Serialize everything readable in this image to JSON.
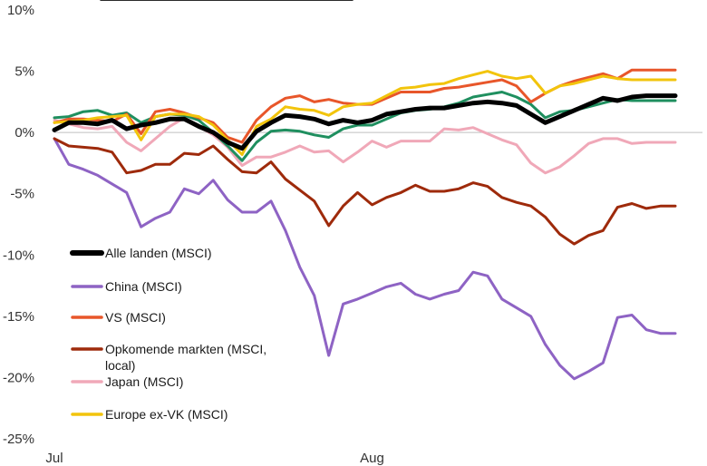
{
  "chart_data": {
    "type": "line",
    "ylim": [
      -25,
      10
    ],
    "yticks": [
      10,
      5,
      0,
      -5,
      -10,
      -15,
      -20,
      -25
    ],
    "ytick_labels": [
      "10%",
      "5%",
      "0%",
      "-5%",
      "-10%",
      "-15%",
      "-20%",
      "-25%"
    ],
    "xticks": [
      0,
      22
    ],
    "xtick_labels": [
      "Jul",
      "Aug"
    ],
    "grid": false,
    "legend_position": "left-middle",
    "x": [
      0,
      1,
      2,
      3,
      4,
      5,
      6,
      7,
      8,
      9,
      10,
      11,
      12,
      13,
      14,
      15,
      16,
      17,
      18,
      19,
      20,
      21,
      22,
      23,
      24,
      25,
      26,
      27,
      28,
      29,
      30,
      31,
      32,
      33,
      34,
      35,
      36,
      37,
      38,
      39,
      40,
      41,
      42,
      43
    ],
    "series": [
      {
        "name": "Alle landen (MSCI)",
        "color": "#000000",
        "width": 5,
        "values": [
          0.2,
          0.8,
          0.8,
          0.7,
          1.0,
          0.3,
          0.6,
          0.8,
          1.1,
          1.1,
          0.5,
          0.0,
          -0.8,
          -1.3,
          0.1,
          0.8,
          1.4,
          1.3,
          1.1,
          0.7,
          1.0,
          0.8,
          1.0,
          1.5,
          1.7,
          1.9,
          2.0,
          2.0,
          2.2,
          2.4,
          2.5,
          2.4,
          2.2,
          1.5,
          0.8,
          1.3,
          1.8,
          2.3,
          2.8,
          2.6,
          2.9,
          3.0,
          3.0,
          3.0
        ]
      },
      {
        "name": "China (MSCI)",
        "color": "#8e63c4",
        "width": 3,
        "values": [
          -0.5,
          -2.6,
          -3.0,
          -3.5,
          -4.2,
          -4.9,
          -7.7,
          -7.0,
          -6.5,
          -4.6,
          -5.0,
          -3.9,
          -5.5,
          -6.5,
          -6.5,
          -5.6,
          -8.0,
          -11.0,
          -13.3,
          -18.2,
          -14.0,
          -13.6,
          -13.1,
          -12.6,
          -12.3,
          -13.2,
          -13.6,
          -13.2,
          -12.9,
          -11.4,
          -11.7,
          -13.6,
          -14.3,
          -15.0,
          -17.3,
          -19.0,
          -20.1,
          -19.5,
          -18.8,
          -15.1,
          -14.9,
          -16.1,
          -16.4,
          -16.4
        ]
      },
      {
        "name": "VS (MSCI)",
        "color": "#e8562a",
        "width": 3,
        "values": [
          0.8,
          1.1,
          1.1,
          1.0,
          0.9,
          1.5,
          -0.1,
          1.7,
          1.9,
          1.6,
          1.2,
          0.8,
          -0.4,
          -0.8,
          1.0,
          2.1,
          2.8,
          3.0,
          2.5,
          2.7,
          2.4,
          2.3,
          2.3,
          2.8,
          3.3,
          3.3,
          3.3,
          3.6,
          3.7,
          3.9,
          4.1,
          4.3,
          3.8,
          2.5,
          3.2,
          3.8,
          4.2,
          4.5,
          4.8,
          4.4,
          5.1,
          5.1,
          5.1,
          5.1
        ]
      },
      {
        "name": "Opkomende markten (MSCI, local)",
        "color": "#9e2a0b",
        "width": 3,
        "values": [
          -0.5,
          -1.1,
          -1.2,
          -1.3,
          -1.6,
          -3.3,
          -3.1,
          -2.6,
          -2.6,
          -1.7,
          -1.8,
          -1.1,
          -2.2,
          -3.2,
          -3.3,
          -2.4,
          -3.8,
          -4.7,
          -5.6,
          -7.6,
          -6.0,
          -4.9,
          -5.9,
          -5.3,
          -4.9,
          -4.3,
          -4.8,
          -4.8,
          -4.6,
          -4.1,
          -4.4,
          -5.3,
          -5.7,
          -6.0,
          -6.9,
          -8.3,
          -9.1,
          -8.4,
          -8.0,
          -6.1,
          -5.8,
          -6.2,
          -6.0,
          -6.0
        ]
      },
      {
        "name": "Japan (MSCI)",
        "color": "#f0a8b8",
        "width": 3,
        "values": [
          1.0,
          0.7,
          0.4,
          0.3,
          0.5,
          -0.8,
          -1.5,
          -0.5,
          0.5,
          1.2,
          0.5,
          -0.2,
          -1.2,
          -2.7,
          -2.0,
          -2.0,
          -1.6,
          -1.1,
          -1.6,
          -1.5,
          -2.4,
          -1.6,
          -0.7,
          -1.2,
          -0.7,
          -0.7,
          -0.7,
          0.3,
          0.2,
          0.4,
          -0.1,
          -0.6,
          -1.0,
          -2.5,
          -3.3,
          -2.8,
          -1.9,
          -0.9,
          -0.5,
          -0.5,
          -0.9,
          -0.8,
          -0.8,
          -0.8
        ]
      },
      {
        "name": "Europe ex-VK (MSCI)",
        "color": "#f2c40c",
        "width": 3,
        "values": [
          0.8,
          0.9,
          1.0,
          1.2,
          1.3,
          1.4,
          -0.6,
          1.3,
          1.5,
          1.5,
          1.3,
          0.6,
          -0.6,
          -1.8,
          0.5,
          1.1,
          2.1,
          1.9,
          1.8,
          1.4,
          2.1,
          2.3,
          2.4,
          3.0,
          3.6,
          3.7,
          3.9,
          4.0,
          4.4,
          4.7,
          5.0,
          4.6,
          4.4,
          4.6,
          3.2,
          3.8,
          4.0,
          4.3,
          4.6,
          4.4,
          4.3,
          4.3,
          4.3,
          4.3
        ]
      },
      {
        "name": "",
        "color": "#1f8f5f",
        "width": 3,
        "values": [
          1.2,
          1.3,
          1.7,
          1.8,
          1.4,
          1.6,
          0.8,
          1.3,
          1.5,
          1.4,
          1.0,
          0.0,
          -1.1,
          -2.3,
          -0.8,
          0.1,
          0.2,
          0.1,
          -0.2,
          -0.4,
          0.3,
          0.6,
          0.6,
          1.1,
          1.6,
          1.8,
          1.9,
          2.1,
          2.4,
          2.9,
          3.1,
          3.3,
          2.9,
          2.3,
          1.2,
          1.7,
          1.8,
          2.1,
          2.4,
          2.7,
          2.6,
          2.6,
          2.6,
          2.6
        ]
      }
    ]
  }
}
